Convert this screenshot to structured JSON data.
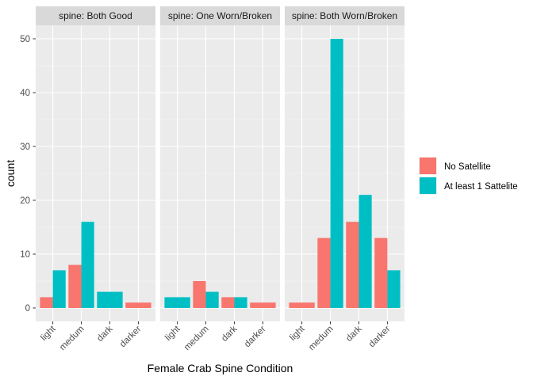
{
  "chart_data": {
    "type": "bar",
    "position": "dodge",
    "xlabel": "Female Crab Spine Condition",
    "ylabel": "count",
    "ylim": [
      -2.5,
      52.5
    ],
    "yticks": [
      0,
      10,
      20,
      30,
      40,
      50
    ],
    "categories": [
      "light",
      "medum",
      "dark",
      "darker"
    ],
    "legend": {
      "placement": "right",
      "entries": [
        {
          "name": "No Satellite",
          "color": "#F8766D"
        },
        {
          "name": "At least 1 Sattelite",
          "color": "#00BFC4"
        }
      ]
    },
    "panels": [
      {
        "label": "spine: Both Good",
        "series": [
          {
            "name": "No Satellite",
            "values": [
              2,
              8,
              null,
              1
            ]
          },
          {
            "name": "At least 1 Sattelite",
            "values": [
              7,
              16,
              3,
              null
            ]
          }
        ]
      },
      {
        "label": "spine: One Worn/Broken",
        "series": [
          {
            "name": "No Satellite",
            "values": [
              null,
              5,
              2,
              1
            ]
          },
          {
            "name": "At least 1 Sattelite",
            "values": [
              2,
              3,
              2,
              null
            ]
          }
        ]
      },
      {
        "label": "spine: Both Worn/Broken",
        "series": [
          {
            "name": "No Satellite",
            "values": [
              1,
              13,
              16,
              13
            ]
          },
          {
            "name": "At least 1 Sattelite",
            "values": [
              null,
              50,
              21,
              7
            ]
          }
        ]
      }
    ]
  }
}
